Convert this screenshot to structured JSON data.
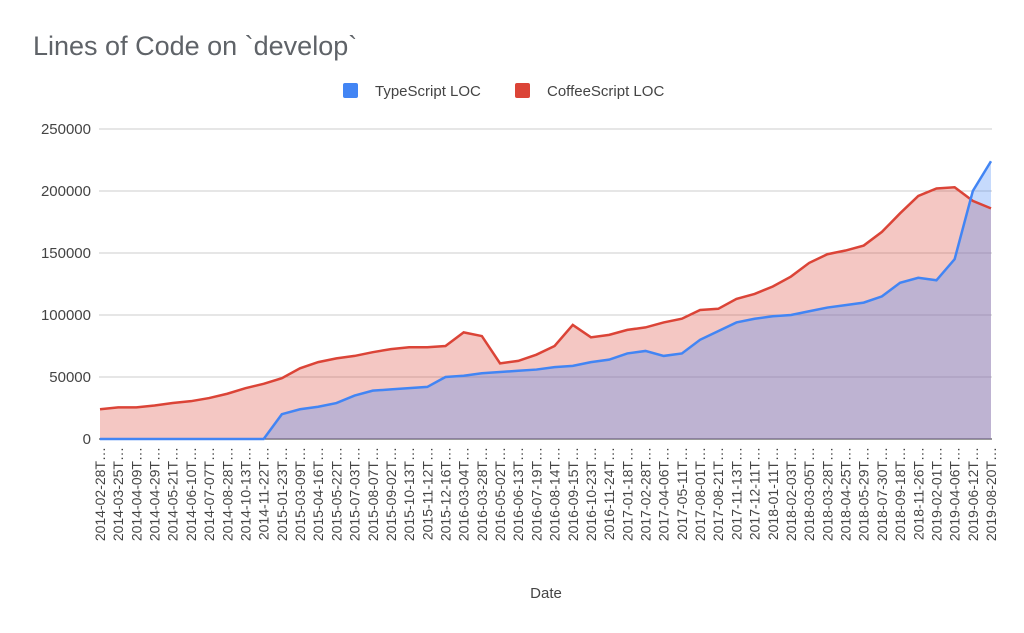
{
  "chart_data": {
    "type": "area",
    "title": "Lines of Code on `develop`",
    "x_label": "Date",
    "categories": [
      "2014-02-28T…",
      "2014-03-25T…",
      "2014-04-09T…",
      "2014-04-29T…",
      "2014-05-21T…",
      "2014-06-10T…",
      "2014-07-07T…",
      "2014-08-28T…",
      "2014-10-13T…",
      "2014-11-22T…",
      "2015-01-23T…",
      "2015-03-09T…",
      "2015-04-16T…",
      "2015-05-22T…",
      "2015-07-03T…",
      "2015-08-07T…",
      "2015-09-02T…",
      "2015-10-13T…",
      "2015-11-12T…",
      "2015-12-16T…",
      "2016-03-04T…",
      "2016-03-28T…",
      "2016-05-02T…",
      "2016-06-13T…",
      "2016-07-19T…",
      "2016-08-14T…",
      "2016-09-15T…",
      "2016-10-23T…",
      "2016-11-24T…",
      "2017-01-18T…",
      "2017-02-28T…",
      "2017-04-06T…",
      "2017-05-11T…",
      "2017-08-01T…",
      "2017-08-21T…",
      "2017-11-13T…",
      "2017-12-11T…",
      "2018-01-11T…",
      "2018-02-03T…",
      "2018-03-05T…",
      "2018-03-28T…",
      "2018-04-25T…",
      "2018-05-29T…",
      "2018-07-30T…",
      "2018-09-18T…",
      "2018-11-26T…",
      "2019-02-01T…",
      "2019-04-06T…",
      "2019-06-12T…",
      "2019-08-20T…"
    ],
    "series": [
      {
        "name": "TypeScript LOC",
        "color": "#4285f4",
        "values": [
          0,
          0,
          0,
          0,
          0,
          0,
          0,
          0,
          0,
          0,
          20000,
          24000,
          26000,
          29000,
          35000,
          39000,
          40000,
          41000,
          42000,
          50000,
          51000,
          53000,
          54000,
          55000,
          56000,
          58000,
          59000,
          62000,
          64000,
          69000,
          71000,
          67000,
          69000,
          80000,
          87000,
          94000,
          97000,
          99000,
          100000,
          103000,
          106000,
          108000,
          110000,
          115000,
          126000,
          130000,
          128000,
          145000,
          200000,
          224000
        ]
      },
      {
        "name": "CoffeeScript LOC",
        "color": "#db4437",
        "values": [
          24000,
          25500,
          25500,
          27000,
          29000,
          30500,
          33000,
          36500,
          41000,
          44500,
          49000,
          57000,
          62000,
          65000,
          67000,
          70000,
          72500,
          74000,
          74000,
          75000,
          86000,
          83000,
          61000,
          63000,
          68000,
          75000,
          92000,
          82000,
          84000,
          88000,
          90000,
          94000,
          97000,
          104000,
          105000,
          113000,
          117000,
          123000,
          131000,
          142000,
          149000,
          152000,
          156000,
          167000,
          182000,
          196000,
          202000,
          203000,
          192000,
          186000
        ]
      }
    ],
    "ylim": [
      0,
      250000
    ],
    "yticks": [
      0,
      50000,
      100000,
      150000,
      200000,
      250000
    ],
    "grid": true,
    "legend": "top"
  }
}
